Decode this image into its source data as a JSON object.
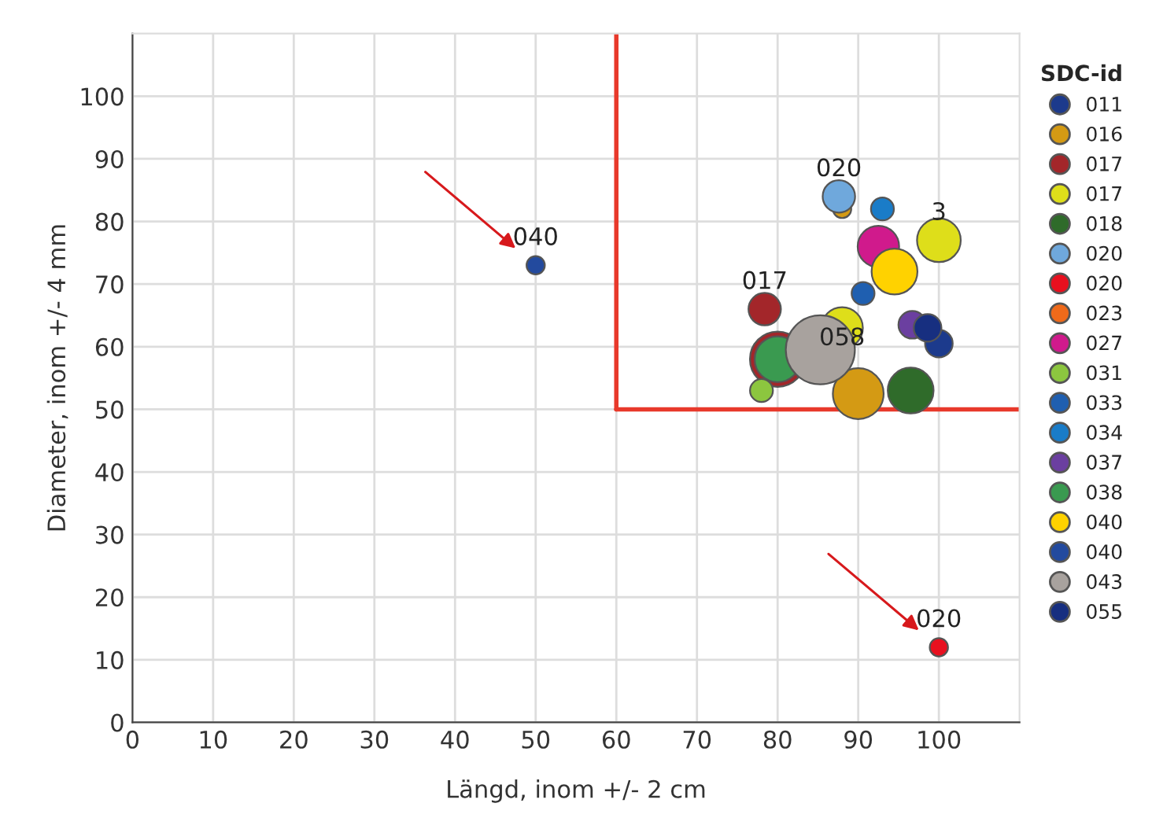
{
  "chart_data": {
    "type": "bubble",
    "xlabel": "Längd, inom +/- 2 cm",
    "ylabel": "Diameter, inom +/- 4 mm",
    "legend_title": "SDC-id",
    "legend": "right",
    "grid": true,
    "xlim": [
      0,
      110
    ],
    "ylim": [
      0,
      110
    ],
    "xticks": [
      0,
      10,
      20,
      30,
      40,
      50,
      60,
      70,
      80,
      90,
      100
    ],
    "yticks": [
      0,
      10,
      20,
      30,
      40,
      50,
      60,
      70,
      80,
      90,
      100
    ],
    "series": [
      {
        "name": "011",
        "color": "#1c3a8c",
        "x": [
          100
        ],
        "values": [
          60.5
        ],
        "sizes": [
          0.16
        ]
      },
      {
        "name": "016",
        "color": "#d49a14",
        "x": [
          90,
          88
        ],
        "values": [
          52.5,
          82
        ],
        "sizes": [
          0.54,
          0.07
        ]
      },
      {
        "name": "017",
        "color": "#a3262a",
        "x": [
          80,
          78.4
        ],
        "values": [
          58,
          66
        ],
        "sizes": [
          0.64,
          0.22
        ]
      },
      {
        "name": "017",
        "color": "#dede1a",
        "x": [
          100,
          88
        ],
        "values": [
          77,
          63
        ],
        "sizes": [
          0.4,
          0.36
        ]
      },
      {
        "name": "018",
        "color": "#2f6b2a",
        "x": [
          96.5
        ],
        "values": [
          53
        ],
        "sizes": [
          0.44
        ]
      },
      {
        "name": "020",
        "color": "#6fa8dc",
        "x": [
          87.6
        ],
        "values": [
          84
        ],
        "sizes": [
          0.22
        ]
      },
      {
        "name": "020",
        "color": "#e8101f",
        "x": [
          100
        ],
        "values": [
          12
        ],
        "sizes": [
          0.07
        ]
      },
      {
        "name": "023",
        "color": "#ef6a1a",
        "x": [
          null
        ],
        "values": [
          null
        ],
        "sizes": [
          null
        ]
      },
      {
        "name": "027",
        "color": "#d01a8c",
        "x": [
          92.5
        ],
        "values": [
          76
        ],
        "sizes": [
          0.36
        ]
      },
      {
        "name": "031",
        "color": "#8cc63f",
        "x": [
          78
        ],
        "values": [
          53
        ],
        "sizes": [
          0.11
        ]
      },
      {
        "name": "033",
        "color": "#1f5fb0",
        "x": [
          90.6
        ],
        "values": [
          68.5
        ],
        "sizes": [
          0.11
        ]
      },
      {
        "name": "034",
        "color": "#1a7cc8",
        "x": [
          93
        ],
        "values": [
          82
        ],
        "sizes": [
          0.11
        ]
      },
      {
        "name": "037",
        "color": "#6b3fa0",
        "x": [
          96.7
        ],
        "values": [
          63.5
        ],
        "sizes": [
          0.16
        ]
      },
      {
        "name": "038",
        "color": "#3a9a50",
        "x": [
          80
        ],
        "values": [
          58
        ],
        "sizes": [
          0.44
        ]
      },
      {
        "name": "040",
        "color": "#ffd200",
        "x": [
          94.5
        ],
        "values": [
          72
        ],
        "sizes": [
          0.44
        ]
      },
      {
        "name": "040",
        "color": "#234a9e",
        "x": [
          50
        ],
        "values": [
          73
        ],
        "sizes": [
          0.07
        ]
      },
      {
        "name": "043",
        "color": "#a8a29e",
        "x": [
          85.3
        ],
        "values": [
          59.5
        ],
        "sizes": [
          1
        ]
      },
      {
        "name": "055",
        "color": "#172f80",
        "x": [
          98.6
        ],
        "values": [
          63
        ],
        "sizes": [
          0.16
        ]
      }
    ],
    "ref_lines": [
      {
        "axis": "x",
        "value": 60,
        "color": "#e8392b"
      },
      {
        "axis": "y",
        "value": 50,
        "color": "#e8392b"
      }
    ],
    "annotations": [
      {
        "text": "040",
        "x": 50,
        "y": 73
      },
      {
        "text": "020",
        "x": 100,
        "y": 12
      },
      {
        "text": "020",
        "x": 87.6,
        "y": 84
      },
      {
        "text": "017",
        "x": 78.4,
        "y": 66
      },
      {
        "text": "058",
        "x": 88,
        "y": 57
      },
      {
        "text": "3",
        "x": 100,
        "y": 77
      }
    ]
  }
}
